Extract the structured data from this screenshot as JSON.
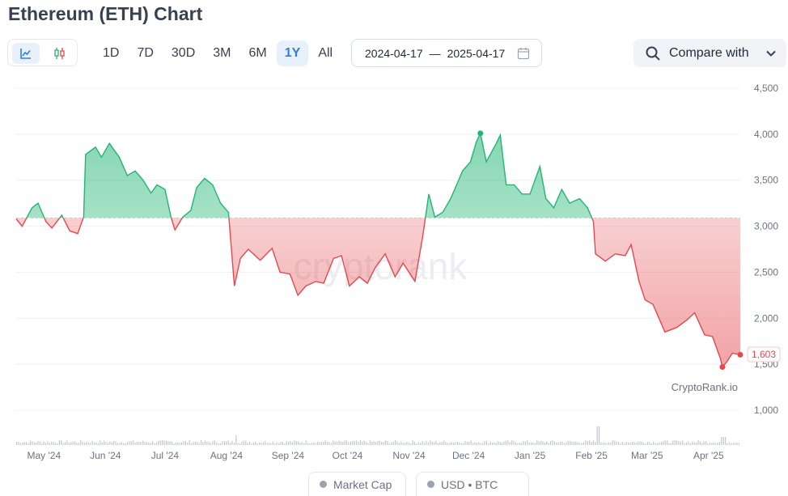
{
  "header": {
    "title": "Ethereum (ETH) Chart"
  },
  "chart_type_buttons": [
    {
      "icon": "line-chart-icon",
      "active": true
    },
    {
      "icon": "candlestick-icon",
      "active": false
    }
  ],
  "range_buttons": [
    {
      "label": "1D",
      "active": false
    },
    {
      "label": "7D",
      "active": false
    },
    {
      "label": "30D",
      "active": false
    },
    {
      "label": "3M",
      "active": false
    },
    {
      "label": "6M",
      "active": false
    },
    {
      "label": "1Y",
      "active": true
    },
    {
      "label": "All",
      "active": false
    }
  ],
  "date_range": {
    "start": "2024-04-17",
    "separator": "—",
    "end": "2025-04-17",
    "icon": "calendar-icon"
  },
  "compare": {
    "label": "Compare with",
    "icon": "search-icon"
  },
  "watermark": "CryptoRank.io",
  "legend_toggles": [
    {
      "label": "Market Cap",
      "active": false
    },
    {
      "label": "USD  •  BTC",
      "active": false
    }
  ],
  "colors": {
    "up": "#22b573",
    "down": "#e5484d",
    "accent": "#2d7fe0",
    "baseline": "#c9c9c9"
  },
  "chart_data": {
    "type": "area",
    "x_start": "2024-04-17",
    "x_end": "2025-04-17",
    "xlabels": [
      "May '24",
      "Jun '24",
      "Jul '24",
      "Aug '24",
      "Sep '24",
      "Oct '24",
      "Nov '24",
      "Dec '24",
      "Jan '25",
      "Feb '25",
      "Mar '25",
      "Apr '25"
    ],
    "yticks": [
      "4,500",
      "4,000",
      "3,500",
      "3,000",
      "2,500",
      "2,000",
      "1,500",
      "1,000"
    ],
    "ylim": [
      1000,
      4500
    ],
    "baseline": 3090,
    "last_price_label": "1,603",
    "points": [
      [
        "2024-04-17",
        3080
      ],
      [
        "2024-04-20",
        3000
      ],
      [
        "2024-04-25",
        3200
      ],
      [
        "2024-04-28",
        3250
      ],
      [
        "2024-05-02",
        3050
      ],
      [
        "2024-05-05",
        2980
      ],
      [
        "2024-05-10",
        3120
      ],
      [
        "2024-05-14",
        2950
      ],
      [
        "2024-05-18",
        2920
      ],
      [
        "2024-05-21",
        3100
      ],
      [
        "2024-05-22",
        3780
      ],
      [
        "2024-05-27",
        3860
      ],
      [
        "2024-05-30",
        3750
      ],
      [
        "2024-06-03",
        3900
      ],
      [
        "2024-06-08",
        3750
      ],
      [
        "2024-06-12",
        3550
      ],
      [
        "2024-06-16",
        3600
      ],
      [
        "2024-06-20",
        3500
      ],
      [
        "2024-06-24",
        3360
      ],
      [
        "2024-06-27",
        3450
      ],
      [
        "2024-07-01",
        3400
      ],
      [
        "2024-07-04",
        3100
      ],
      [
        "2024-07-06",
        2960
      ],
      [
        "2024-07-10",
        3100
      ],
      [
        "2024-07-14",
        3170
      ],
      [
        "2024-07-17",
        3420
      ],
      [
        "2024-07-21",
        3520
      ],
      [
        "2024-07-25",
        3450
      ],
      [
        "2024-07-29",
        3250
      ],
      [
        "2024-08-02",
        3150
      ],
      [
        "2024-08-05",
        2350
      ],
      [
        "2024-08-08",
        2650
      ],
      [
        "2024-08-12",
        2750
      ],
      [
        "2024-08-18",
        2630
      ],
      [
        "2024-08-24",
        2760
      ],
      [
        "2024-08-28",
        2500
      ],
      [
        "2024-09-02",
        2480
      ],
      [
        "2024-09-06",
        2250
      ],
      [
        "2024-09-10",
        2350
      ],
      [
        "2024-09-15",
        2400
      ],
      [
        "2024-09-19",
        2380
      ],
      [
        "2024-09-24",
        2650
      ],
      [
        "2024-09-28",
        2680
      ],
      [
        "2024-10-02",
        2350
      ],
      [
        "2024-10-07",
        2450
      ],
      [
        "2024-10-11",
        2380
      ],
      [
        "2024-10-15",
        2550
      ],
      [
        "2024-10-20",
        2700
      ],
      [
        "2024-10-25",
        2450
      ],
      [
        "2024-10-29",
        2600
      ],
      [
        "2024-11-04",
        2400
      ],
      [
        "2024-11-08",
        2900
      ],
      [
        "2024-11-11",
        3350
      ],
      [
        "2024-11-14",
        3100
      ],
      [
        "2024-11-18",
        3150
      ],
      [
        "2024-11-22",
        3300
      ],
      [
        "2024-11-25",
        3450
      ],
      [
        "2024-11-28",
        3600
      ],
      [
        "2024-12-02",
        3700
      ],
      [
        "2024-12-05",
        3920
      ],
      [
        "2024-12-07",
        4010
      ],
      [
        "2024-12-10",
        3700
      ],
      [
        "2024-12-15",
        3900
      ],
      [
        "2024-12-17",
        3990
      ],
      [
        "2024-12-20",
        3450
      ],
      [
        "2024-12-24",
        3450
      ],
      [
        "2024-12-28",
        3350
      ],
      [
        "2025-01-01",
        3350
      ],
      [
        "2025-01-06",
        3650
      ],
      [
        "2025-01-09",
        3300
      ],
      [
        "2025-01-13",
        3200
      ],
      [
        "2025-01-17",
        3400
      ],
      [
        "2025-01-21",
        3250
      ],
      [
        "2025-01-26",
        3300
      ],
      [
        "2025-01-30",
        3200
      ],
      [
        "2025-02-02",
        3050
      ],
      [
        "2025-02-03",
        2700
      ],
      [
        "2025-02-08",
        2620
      ],
      [
        "2025-02-13",
        2700
      ],
      [
        "2025-02-18",
        2680
      ],
      [
        "2025-02-21",
        2800
      ],
      [
        "2025-02-25",
        2400
      ],
      [
        "2025-02-28",
        2200
      ],
      [
        "2025-03-04",
        2150
      ],
      [
        "2025-03-10",
        1850
      ],
      [
        "2025-03-16",
        1900
      ],
      [
        "2025-03-21",
        1980
      ],
      [
        "2025-03-25",
        2060
      ],
      [
        "2025-03-30",
        1820
      ],
      [
        "2025-04-03",
        1800
      ],
      [
        "2025-04-07",
        1560
      ],
      [
        "2025-04-08",
        1470
      ],
      [
        "2025-04-10",
        1520
      ],
      [
        "2025-04-13",
        1620
      ],
      [
        "2025-04-17",
        1603
      ]
    ],
    "max_point": {
      "date": "2024-12-07",
      "value": 4010
    },
    "min_point": {
      "date": "2025-04-08",
      "value": 1470
    },
    "volume_note": "volume bars at bottom"
  }
}
